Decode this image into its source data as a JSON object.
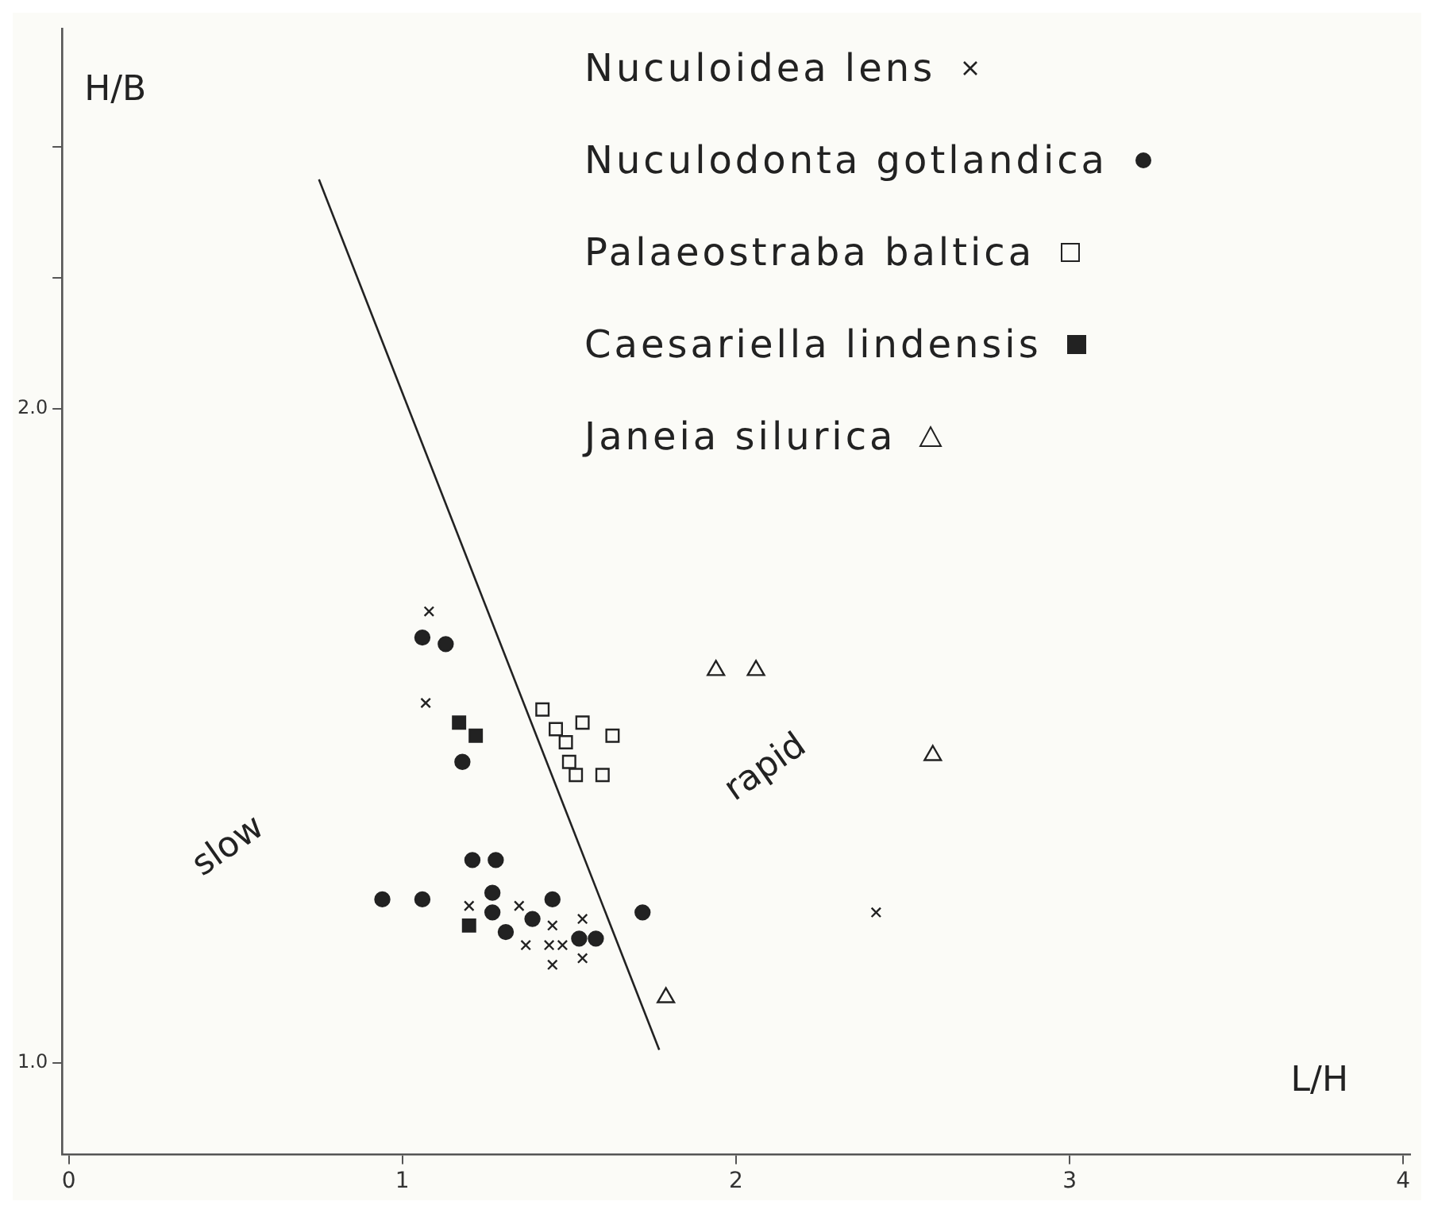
{
  "chart_data": {
    "type": "scatter",
    "xlabel": "L/H",
    "ylabel": "H/B",
    "xlim": [
      -0.02,
      4.02
    ],
    "ylim": [
      0.86,
      2.58
    ],
    "xticks": [
      0,
      1,
      2,
      3,
      4
    ],
    "yticks": [
      {
        "value": 1.0,
        "label": "1.0"
      },
      {
        "value": 2.0,
        "label": "2.0"
      },
      {
        "value": 2.2,
        "label": null
      },
      {
        "value": 2.4,
        "label": null
      }
    ],
    "grid": false,
    "legend": "top right",
    "annotations": [
      "slow",
      "rapid"
    ],
    "series": [
      {
        "name": "Nuculoidea lens",
        "color": "#222222",
        "marker": "cross",
        "x": [
          1.08,
          1.07,
          1.2,
          1.35,
          1.45,
          1.54,
          1.37,
          1.44,
          1.48,
          1.54,
          1.45,
          2.42
        ],
        "values": [
          1.69,
          1.55,
          1.24,
          1.24,
          1.21,
          1.22,
          1.18,
          1.18,
          1.18,
          1.16,
          1.15,
          1.23
        ]
      },
      {
        "name": "Nuculodonta gotlandica",
        "color": "#222222",
        "marker": "circle",
        "x": [
          1.06,
          1.13,
          1.18,
          1.21,
          1.28,
          0.94,
          1.06,
          1.27,
          1.27,
          1.45,
          1.39,
          1.31,
          1.53,
          1.58,
          1.72
        ],
        "values": [
          1.65,
          1.64,
          1.46,
          1.31,
          1.31,
          1.25,
          1.25,
          1.26,
          1.23,
          1.25,
          1.22,
          1.2,
          1.19,
          1.19,
          1.23
        ]
      },
      {
        "name": "Palaeostraba baltica",
        "color": "#222222",
        "marker": "square",
        "x": [
          1.42,
          1.46,
          1.54,
          1.63,
          1.49,
          1.5,
          1.52,
          1.6
        ],
        "values": [
          1.54,
          1.51,
          1.52,
          1.5,
          1.49,
          1.46,
          1.44,
          1.44
        ]
      },
      {
        "name": "Caesariella lindensis",
        "color": "#222222",
        "marker": "square",
        "x": [
          1.17,
          1.22,
          1.2
        ],
        "values": [
          1.52,
          1.5,
          1.21
        ]
      },
      {
        "name": "Janeia silurica",
        "color": "#222222",
        "marker": "triangle",
        "x": [
          1.94,
          2.06,
          2.59,
          1.79
        ],
        "values": [
          1.6,
          1.6,
          1.47,
          1.1
        ]
      },
      {
        "type": "line",
        "color": "#222222",
        "marker": "none",
        "x": [
          0.75,
          1.77
        ],
        "values": [
          2.35,
          1.02
        ]
      }
    ]
  }
}
